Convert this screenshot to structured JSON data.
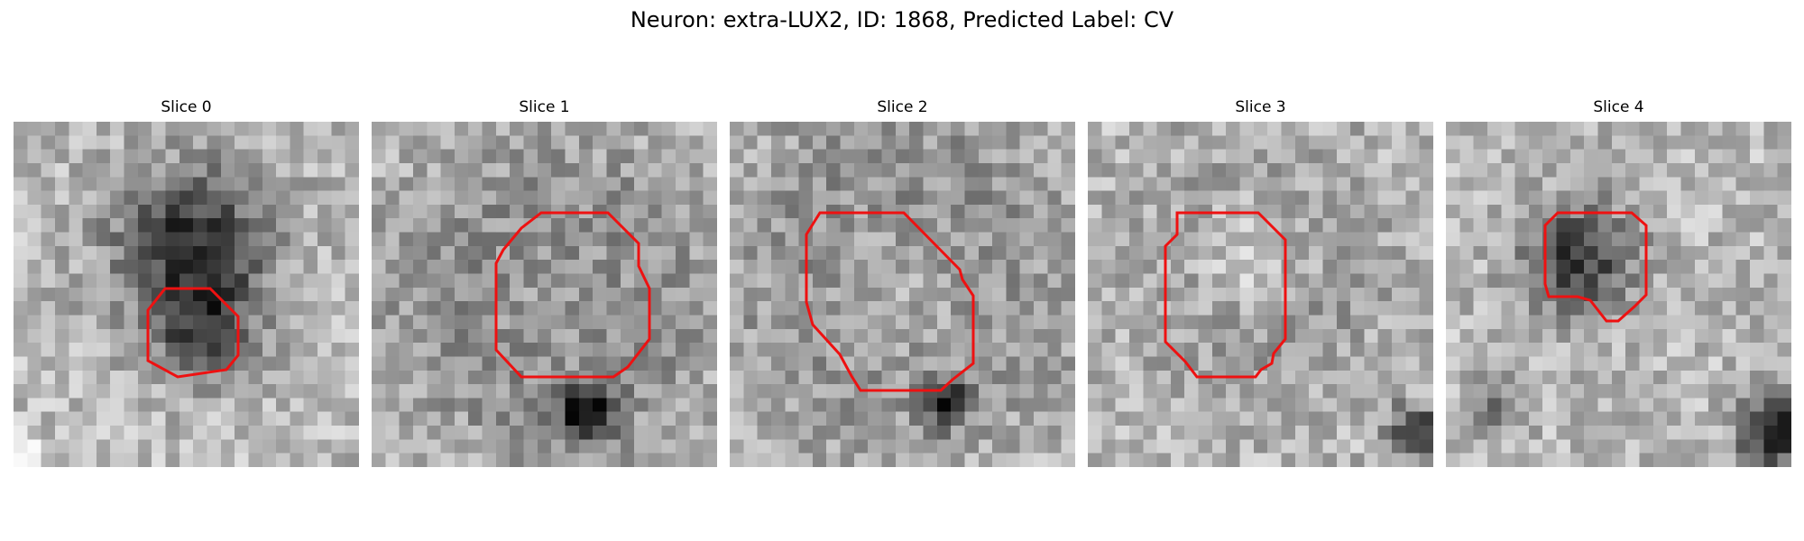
{
  "figure": {
    "title": "Neuron: extra-LUX2, ID: 1868, Predicted Label: CV",
    "contour_color": "#ee1111"
  },
  "panels": [
    {
      "label": "Slice 0",
      "seed": 11,
      "blobs": [
        [
          0.52,
          0.36,
          0.22,
          -0.55
        ],
        [
          0.54,
          0.6,
          0.14,
          -0.35
        ],
        [
          0.05,
          0.95,
          0.04,
          0.5
        ]
      ]
    },
    {
      "label": "Slice 1",
      "seed": 23,
      "blobs": [
        [
          0.52,
          0.52,
          0.26,
          0.35
        ],
        [
          0.52,
          0.52,
          0.38,
          -0.45
        ],
        [
          0.62,
          0.85,
          0.08,
          -0.6
        ]
      ]
    },
    {
      "label": "Slice 2",
      "seed": 37,
      "blobs": [
        [
          0.5,
          0.47,
          0.28,
          0.35
        ],
        [
          0.5,
          0.45,
          0.42,
          -0.4
        ],
        [
          0.63,
          0.82,
          0.06,
          -0.6
        ]
      ]
    },
    {
      "label": "Slice 3",
      "seed": 41,
      "blobs": [
        [
          0.48,
          0.4,
          0.2,
          0.3
        ],
        [
          0.5,
          0.42,
          0.33,
          -0.25
        ],
        [
          0.95,
          0.9,
          0.08,
          -0.5
        ]
      ]
    },
    {
      "label": "Slice 4",
      "seed": 53,
      "blobs": [
        [
          0.38,
          0.4,
          0.16,
          -0.5
        ],
        [
          0.95,
          0.9,
          0.1,
          -0.6
        ],
        [
          0.15,
          0.82,
          0.08,
          -0.25
        ]
      ]
    }
  ]
}
